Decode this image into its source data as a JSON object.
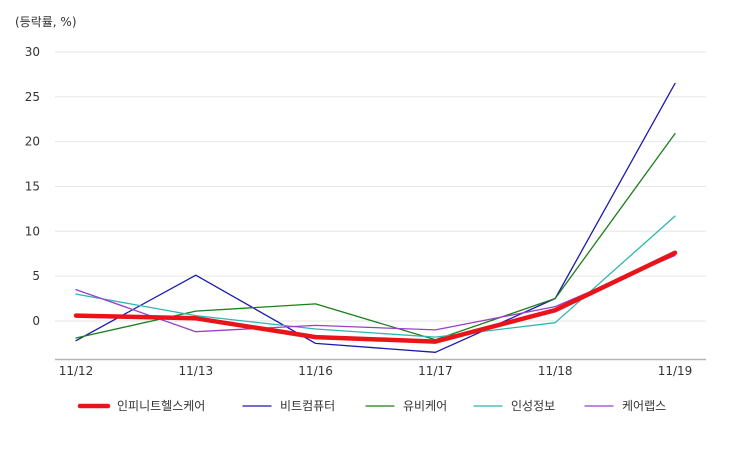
{
  "chart_data": {
    "type": "line",
    "title": "",
    "unit_label": "(등락률, %)",
    "xlabel": "",
    "ylabel": "",
    "categories": [
      "11/12",
      "11/13",
      "11/16",
      "11/17",
      "11/18",
      "11/19"
    ],
    "ylim": [
      -4.3,
      30
    ],
    "yticks": [
      0,
      5,
      10,
      15,
      20,
      25,
      30
    ],
    "grid": true,
    "legend_position": "bottom",
    "series": [
      {
        "name": "인피니트헬스케어",
        "color": "#e8141a",
        "emphasis": true,
        "values": [
          0.6,
          0.3,
          -1.8,
          -2.3,
          1.2,
          7.6
        ]
      },
      {
        "name": "비트컴퓨터",
        "color": "#1a1aad",
        "emphasis": false,
        "values": [
          -2.2,
          5.1,
          -2.5,
          -3.5,
          2.5,
          26.5
        ]
      },
      {
        "name": "유비케어",
        "color": "#1a7f1a",
        "emphasis": false,
        "values": [
          -1.9,
          1.1,
          1.9,
          -2.1,
          2.5,
          20.9
        ]
      },
      {
        "name": "인성정보",
        "color": "#2eb5b2",
        "emphasis": false,
        "values": [
          3.0,
          0.6,
          -0.9,
          -1.8,
          -0.2,
          11.7
        ]
      },
      {
        "name": "케어랩스",
        "color": "#9b40c8",
        "emphasis": false,
        "values": [
          3.5,
          -1.2,
          -0.5,
          -1.0,
          1.6,
          7.3
        ]
      }
    ]
  }
}
